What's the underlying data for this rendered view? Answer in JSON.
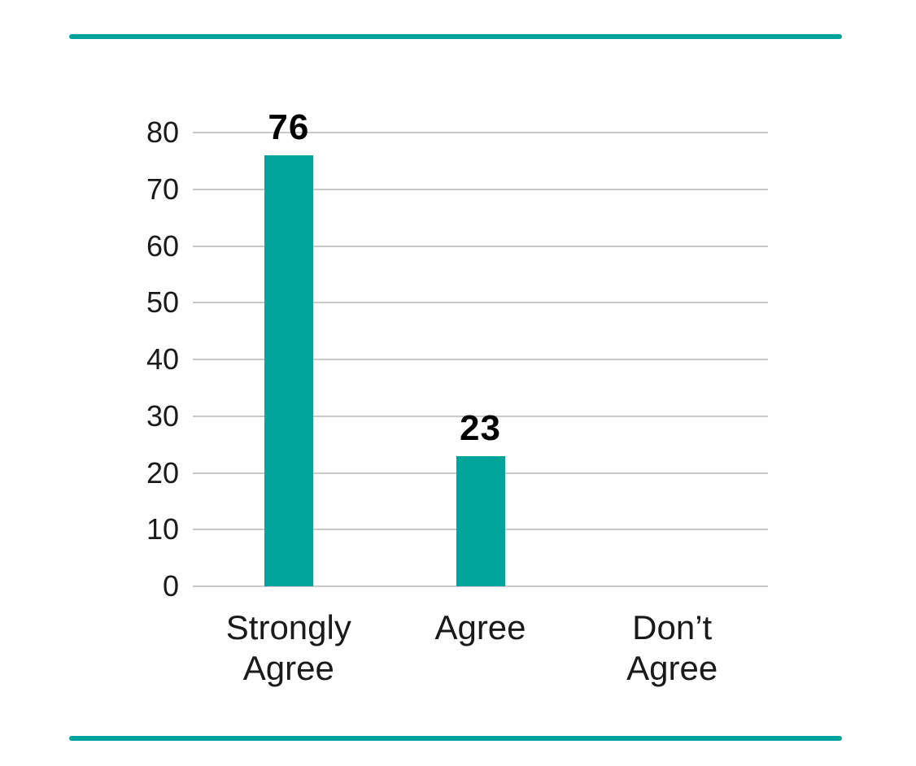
{
  "dividers": {
    "color": "#00A49A"
  },
  "chart_data": {
    "type": "bar",
    "categories": [
      "Strongly Agree",
      "Agree",
      "Don’t Agree"
    ],
    "values": [
      76,
      23,
      0
    ],
    "bar_labels": [
      "76",
      "23",
      ""
    ],
    "yticks": [
      0,
      10,
      20,
      30,
      40,
      50,
      60,
      70,
      80
    ],
    "ytick_labels": [
      "0",
      "10",
      "20",
      "30",
      "40",
      "50",
      "60",
      "70",
      "80"
    ],
    "ylim": [
      0,
      80
    ],
    "grid": "horizontal",
    "legend": "none",
    "bar_color": "#00A49A",
    "gridline_color": "#C8C8C8",
    "text_color": "#1A1A1A",
    "value_label_color": "#000000",
    "background": "#FFFFFF"
  }
}
